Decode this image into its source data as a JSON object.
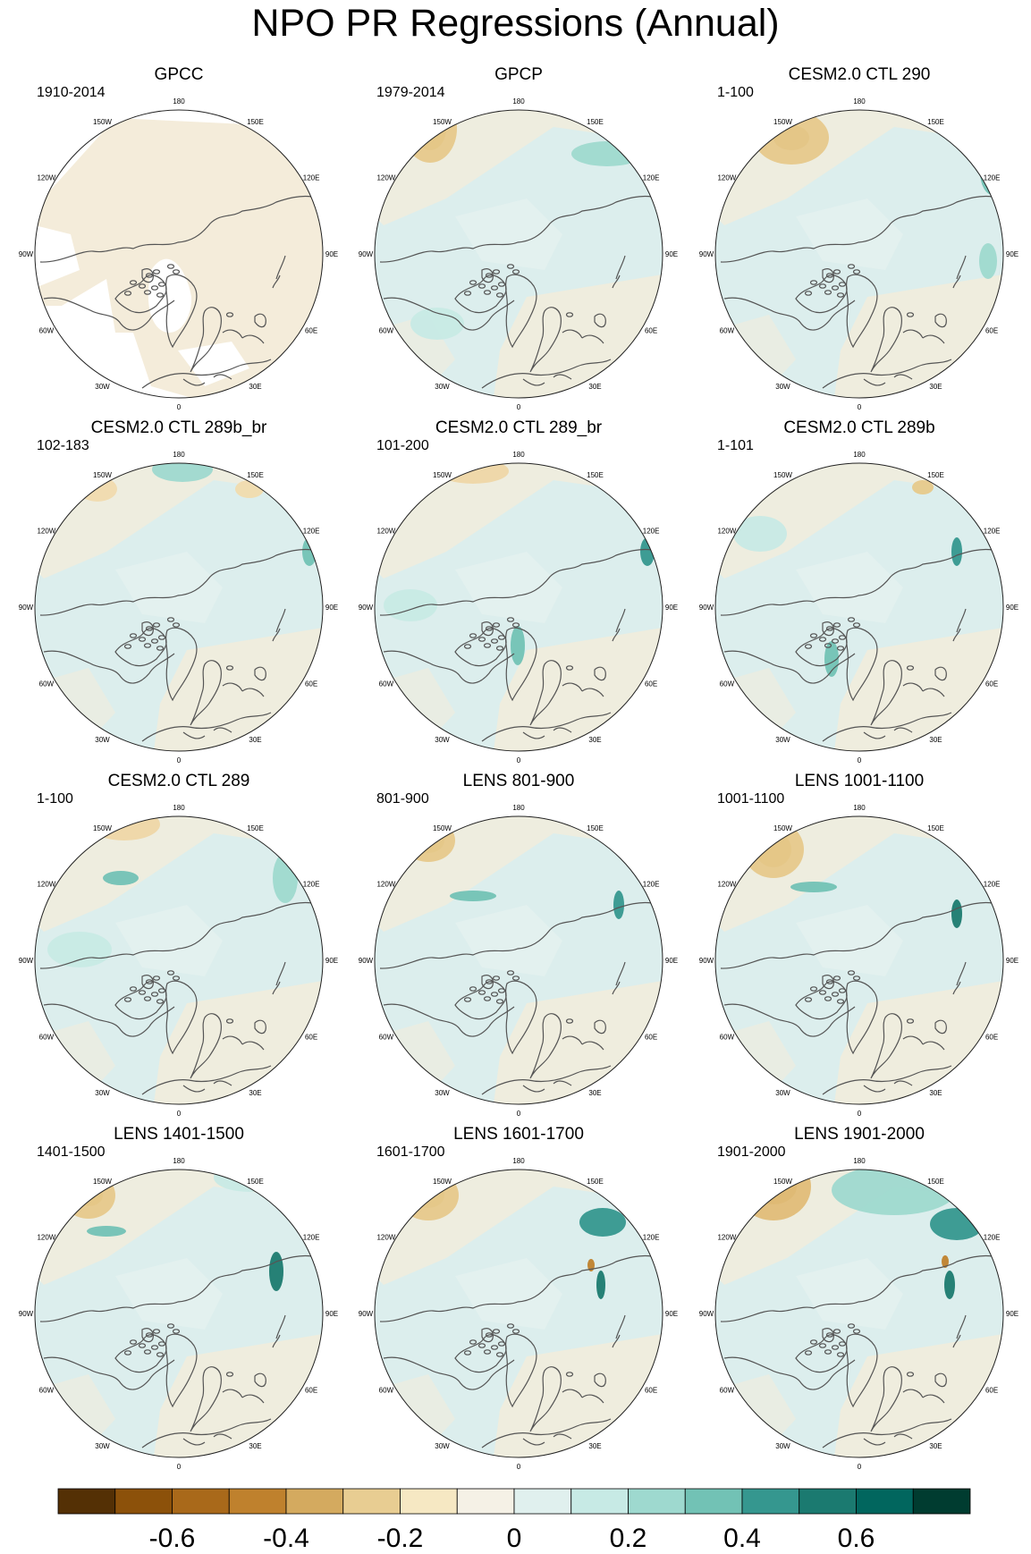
{
  "title": "NPO PR Regressions (Annual)",
  "chart_data": {
    "type": "polar-stereographic contour maps (regression of annual precipitation onto the NPO index)",
    "projection": "north polar stereographic, 0 at bottom, 180 at top",
    "longitude_labels": [
      "180",
      "150E",
      "120E",
      "90E",
      "60E",
      "30E",
      "0",
      "30W",
      "60W",
      "90W",
      "120W",
      "150W"
    ],
    "panels": [
      {
        "title": "GPCC",
        "years": "1910-2014",
        "masked_ocean": true
      },
      {
        "title": "GPCP",
        "years": "1979-2014",
        "masked_ocean": false
      },
      {
        "title": "CESM2.0 CTL 290",
        "years": "1-100",
        "masked_ocean": false
      },
      {
        "title": "CESM2.0 CTL 289b_br",
        "years": "102-183",
        "masked_ocean": false
      },
      {
        "title": "CESM2.0 CTL 289_br",
        "years": "101-200",
        "masked_ocean": false
      },
      {
        "title": "CESM2.0 CTL 289b",
        "years": "1-101",
        "masked_ocean": false
      },
      {
        "title": "CESM2.0 CTL 289",
        "years": "1-100",
        "masked_ocean": false
      },
      {
        "title": "LENS 801-900",
        "years": "801-900",
        "masked_ocean": false
      },
      {
        "title": "LENS 1001-1100",
        "years": "1001-1100",
        "masked_ocean": false
      },
      {
        "title": "LENS 1401-1500",
        "years": "1401-1500",
        "masked_ocean": false
      },
      {
        "title": "LENS 1601-1700",
        "years": "1601-1700",
        "masked_ocean": false
      },
      {
        "title": "LENS 1901-2000",
        "years": "1901-2000",
        "masked_ocean": false
      }
    ],
    "colorbar": {
      "levels": [
        -0.7,
        -0.6,
        -0.5,
        -0.4,
        -0.3,
        -0.2,
        -0.1,
        0,
        0.1,
        0.2,
        0.3,
        0.4,
        0.5,
        0.6,
        0.7
      ],
      "colors": [
        "#543005",
        "#8c510a",
        "#a9691a",
        "#bf812d",
        "#d4aa5f",
        "#e8cd92",
        "#f6e8c3",
        "#f5f1e6",
        "#e0f0ee",
        "#c7eae5",
        "#9ed9cf",
        "#72c2b5",
        "#35978f",
        "#1b7a70",
        "#01665e",
        "#003c30"
      ],
      "tick_labels": [
        "-0.6",
        "-0.4",
        "-0.2",
        "0",
        "0.2",
        "0.4",
        "0.6"
      ],
      "tick_values": [
        -0.6,
        -0.4,
        -0.2,
        0,
        0.2,
        0.4,
        0.6
      ]
    }
  }
}
